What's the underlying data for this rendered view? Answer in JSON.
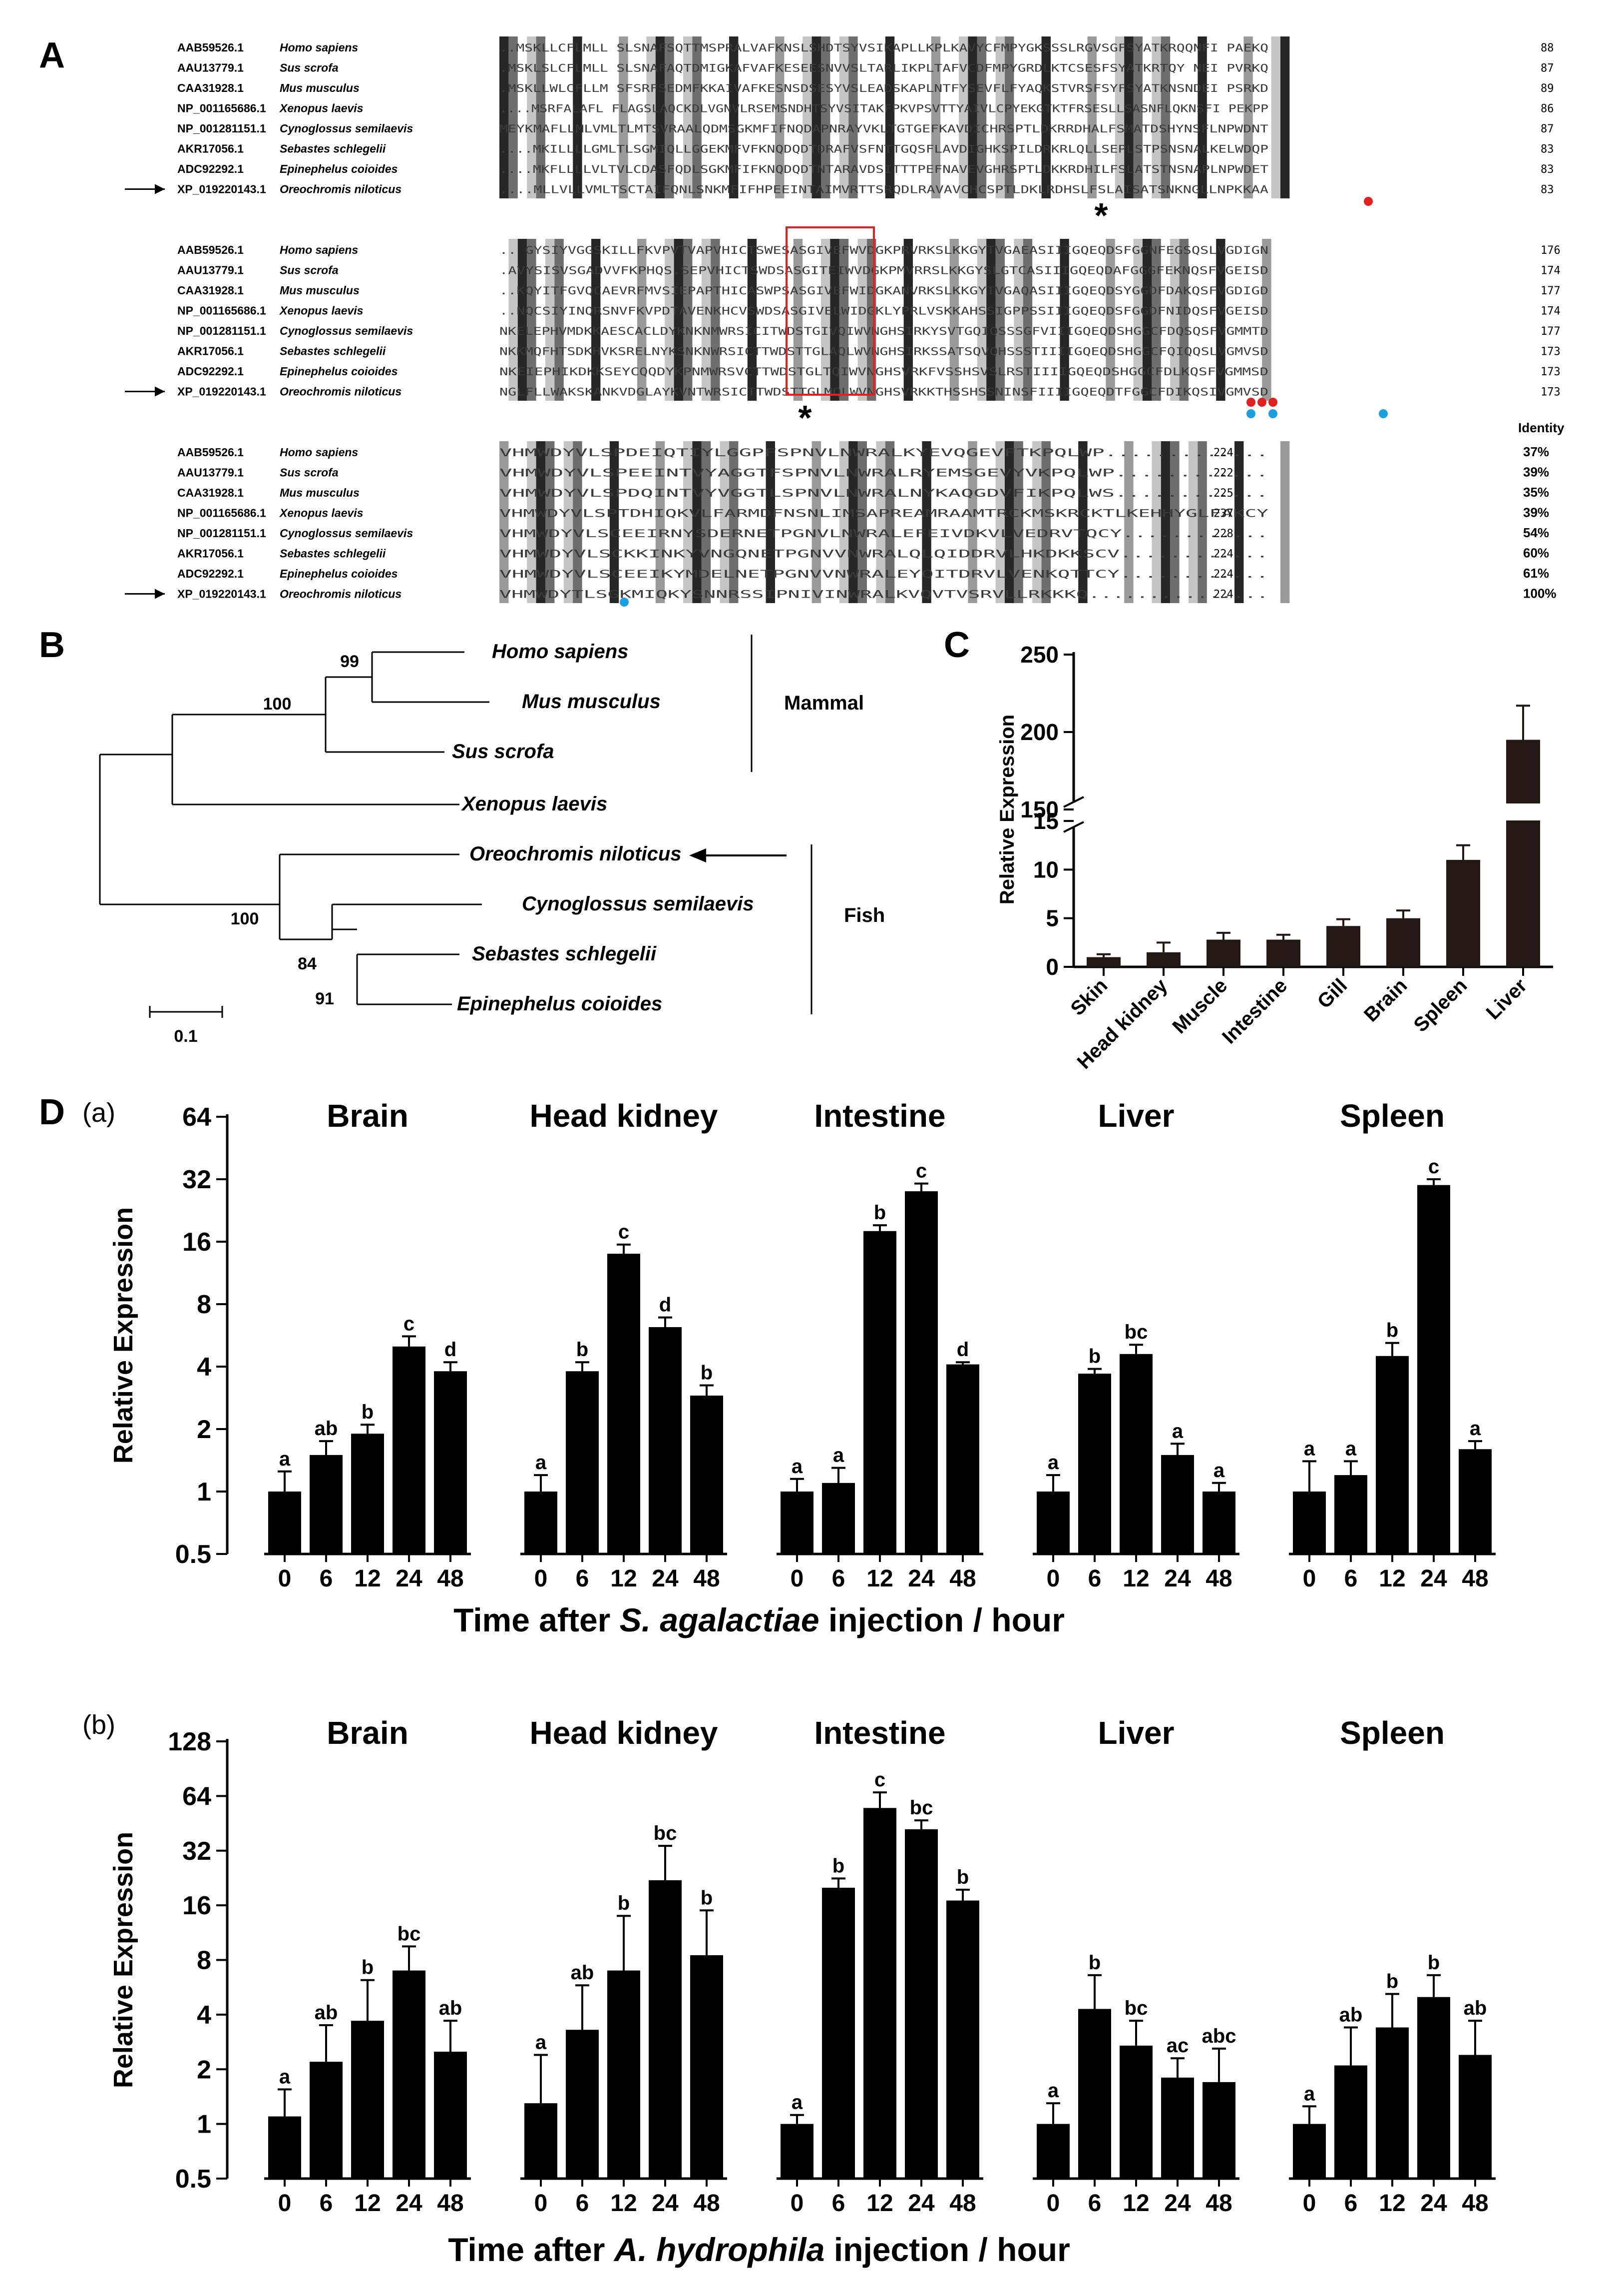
{
  "panels": {
    "A": "A",
    "B": "B",
    "C": "C",
    "D": "D",
    "Da": "(a)",
    "Db": "(b)"
  },
  "alignment": {
    "species": [
      {
        "acc": "AAB59526.1",
        "name": "Homo sapiens",
        "ends": [
          88,
          176,
          224
        ],
        "identity": "37%"
      },
      {
        "acc": "AAU13779.1",
        "name": "Sus scrofa",
        "ends": [
          87,
          174,
          222
        ],
        "identity": "39%"
      },
      {
        "acc": "CAA31928.1",
        "name": "Mus musculus",
        "ends": [
          89,
          177,
          225
        ],
        "identity": "35%"
      },
      {
        "acc": "NP_001165686.1",
        "name": "Xenopus laevis",
        "ends": [
          86,
          174,
          237
        ],
        "identity": "39%"
      },
      {
        "acc": "NP_001281151.1",
        "name": "Cynoglossus semilaevis",
        "ends": [
          87,
          177,
          228
        ],
        "identity": "54%"
      },
      {
        "acc": "AKR17056.1",
        "name": "Sebastes schlegelii",
        "ends": [
          83,
          173,
          224
        ],
        "identity": "60%"
      },
      {
        "acc": "ADC92292.1",
        "name": "Epinephelus coioides",
        "ends": [
          83,
          173,
          224
        ],
        "identity": "61%"
      },
      {
        "acc": "XP_019220143.1",
        "name": "Oreochromis niloticus",
        "ends": [
          83,
          173,
          224
        ],
        "identity": "100%"
      }
    ],
    "sequences": [
      [
        "..MSKLLCFLMLL SLSNAFSQTTMSPRALVAFKNSLSHDTSYVSIKAPLLKPLKAVYCFMPYGKSSSLRGVSGFSYATKRQQNFI PAEKQ",
        ".MSKLSLCFLMLL SLSNAFAQTDMIGKAFVAFKESEESNVVSLTARLIKPLTAFVCDFMPYGRDLKTCSESFSYATKRTQY NEI PVRKQ",
        ".MSKLLWLCFLLM SFSRFSEDMFKKAIVAFKESNSDSESYVSLEADSKAPLNTFYSEVFLFYAQKSTVRSFSYFSYATKNSNDEI PSRKD",
        "....MSRFALAFL FLAGSLAQCKDLVGNVLRSEMSNDHTSYVSITAKFPKVPSVTTYAIVLCPYEKGTKTFRSESLLSASNFLQKNSFI PEKPP",
        "MEYKMAFLLMLVMLTLMTSVRAALQDMSGKMFIFNQDAPNRAYVKLTGTGEFKAVDICHRSPTLDKRRDHALFSMATDSHYNSFLNPWDNT",
        "....MKILLLLGMLTLSGMIQLLGGEKMFVFKNQDQDTDRAFVSFNTTGQSFLAVDIGHKSPILDRKRLQLLSEPLSTPSNSNALKELWDQP",
        "....MKFLLLLVLTVLCDASFQDLSGKMFIFKNQDQDTNTARAVDSITTTPEFNAVEVGHRSPTLDKKRDHILFSLATSTNSNAPLNPWDET",
        "....MLLVLLVMLTSCTAIFQNLSNKMFIFHPEEINTAIMVRTTSRQDLRAVAVCHCSPTLDKLRDHSLFSLAISATSNKNGLLNPKKAA"
      ],
      [
        ".. GYSIYVGGSKILLFKVPVTVAPVHICTSWESASGIVEFWVDGKPRVRKSLKKGYTVGAEASIIIGQEQDSFGGNFEGSQSLVGDIGN",
        ".AVYSISVSGADVVFKPHQS.SEPVHICTSWDSASGITEIWVDGKPMVRRSLKKGYSLGTCASIIIGQEQDAFGGGFEKNQSFVGEISD",
        "..KQYITFGVQCAEVRFMVSIEPAPTHICASWPSASGIVEFWIDGKANVRKSLKKGYTVGAQASIIIGQEQDSYGGDFDAKQSFVGDIGD",
        "..NQCSIYINQRSNVFKVPDTAVENKHCVSWDSASGIVELWIDGKLYPRLVSKKAHSSIGPPSSIIIGQEQDSFGGDFNIDQSFVGEISD",
        "NKELEPHVMDKKAESCACLDYKNKNMWRSICITWDSTGIVQIWVNGHSIRKYSVTGQIQSSSGFVIIIGQEQDSHGGCFDQSQSFVGMMTD",
        "NKKMQFHTSDKHVKSRELNYKSNKNWRSICTTWDSTTGLAQLWVNGHSIRKSSATSQVQHSSSTIIIIGQEQDSHGGCFQIQQSLVGMVSD",
        "NKEIEPHIKDKKSEYCQQDYKPNMWRSVCTTWDSTGLTQIWVNGHSVRKFVSSHSVSLRSTIIIIGQEQDSHGGCFDLKQSFVGMMSD",
        "NGLFLLWAKSKANKVDGLAYKVNTWRSICTTWDSTTGLMQLWVNGHSVRKKTHSSHSSNINSFIIIIGQEQDTFGGCFDIKQSIVGMVSD"
      ],
      [
        "VHMWDYVLSPDEIQTIYLGGPFSPNVLNWRALKYEVQGEVFTKPQLWP.............",
        "VHMWDYVLSPEEINTVYAGGTFSPNVLNWRALRYEMSGEVYVKPQLWP............",
        "VHMWDYVLSPDQINTVYVGGTLSPNVLNWRALNYKAQGDVFIKPQLWS............",
        "VHMWDYVLSPTDHIQKVLFARMDFNSNLIMSAPREAMRAAMTRCKMSKRCKTLKEHHYGLFAKCY",
        "VHMWDYVLSCEEIRNYSDERNETPGNVLNWRALEFEIVDKVLVEDRVTQCY............",
        "VHMWDYVLSCKKINKYVNGQNETPGNVVNWRALQLQIDDRVLHKDKKSCV............",
        "VHMWDYVLSCEEIKYMDELNETPGNVVNWRALEYQITDRVLVENKQTTCY............",
        "VHMWDYTLSGKMIQKYSNNRSSIPNIVINWRALKVQVTVSRVLLRKKKQ..............."
      ]
    ],
    "identity_header": "Identity",
    "star": "*"
  },
  "tree": {
    "taxa": [
      "Homo sapiens",
      "Mus musculus",
      "Sus scrofa",
      "Xenopus laevis",
      "Oreochromis niloticus",
      "Cynoglossus semilaevis",
      "Sebastes schlegelii",
      "Epinephelus coioides"
    ],
    "bootstraps": [
      "99",
      "100",
      "100",
      "84",
      "91"
    ],
    "groups": [
      "Mammal",
      "Fish"
    ],
    "scale_label": "0.1"
  },
  "chart_data": [
    {
      "panel": "C",
      "type": "bar",
      "ylabel": "Relative Expression",
      "categories": [
        "Skin",
        "Head kidney",
        "Muscle",
        "Intestine",
        "Gill",
        "Brain",
        "Spleen",
        "Liver"
      ],
      "values": [
        1.0,
        1.5,
        2.8,
        2.8,
        4.2,
        5.0,
        11.0,
        195
      ],
      "errors": [
        0.3,
        1.0,
        0.7,
        0.5,
        0.7,
        0.8,
        1.5,
        22
      ],
      "ylim": [
        0,
        250
      ],
      "axis_break": [
        15,
        150
      ],
      "lower_ticks": [
        0,
        5,
        10,
        15
      ],
      "upper_ticks": [
        150,
        200,
        250
      ]
    },
    {
      "panel": "D(a)",
      "type": "bar",
      "y_scale": "log2",
      "ylabel": "Relative Expression",
      "xlabel_parts": [
        "Time after ",
        "S. agalactiae",
        " injection / hour"
      ],
      "yticks": [
        "0.5",
        "1",
        "2",
        "4",
        "8",
        "16",
        "32",
        "64"
      ],
      "ylim": [
        0.5,
        64
      ],
      "categories": [
        "0",
        "6",
        "12",
        "24",
        "48"
      ],
      "series": [
        {
          "name": "Brain",
          "values": [
            1,
            1.5,
            1.9,
            5.0,
            3.8
          ],
          "errors": [
            0.25,
            0.25,
            0.2,
            0.6,
            0.4
          ],
          "letters": [
            "a",
            "ab",
            "b",
            "c",
            "d"
          ]
        },
        {
          "name": "Head kidney",
          "values": [
            1,
            3.8,
            14,
            6.2,
            2.9
          ],
          "errors": [
            0.2,
            0.4,
            1.5,
            0.7,
            0.35
          ],
          "letters": [
            "a",
            "b",
            "c",
            "d",
            "b"
          ]
        },
        {
          "name": "Intestine",
          "values": [
            1,
            1.1,
            18,
            28,
            4.1
          ],
          "errors": [
            0.15,
            0.2,
            1.2,
            2.5,
            0.1
          ],
          "letters": [
            "a",
            "a",
            "b",
            "c",
            "d"
          ]
        },
        {
          "name": "Liver",
          "values": [
            1,
            3.7,
            4.6,
            1.5,
            1.0
          ],
          "errors": [
            0.2,
            0.2,
            0.5,
            0.2,
            0.1
          ],
          "letters": [
            "a",
            "b",
            "bc",
            "a",
            "a"
          ]
        },
        {
          "name": "Spleen",
          "values": [
            1,
            1.2,
            4.5,
            30,
            1.6
          ],
          "errors": [
            0.4,
            0.2,
            0.7,
            2.0,
            0.15
          ],
          "letters": [
            "a",
            "a",
            "b",
            "c",
            "a"
          ]
        }
      ]
    },
    {
      "panel": "D(b)",
      "type": "bar",
      "y_scale": "log2",
      "ylabel": "Relative Expression",
      "xlabel_parts": [
        "Time after ",
        "A. hydrophila",
        " injection / hour"
      ],
      "yticks": [
        "0.5",
        "1",
        "2",
        "4",
        "8",
        "16",
        "32",
        "64",
        "128"
      ],
      "ylim": [
        0.5,
        128
      ],
      "categories": [
        "0",
        "6",
        "12",
        "24",
        "48"
      ],
      "series": [
        {
          "name": "Brain",
          "values": [
            1.1,
            2.2,
            3.7,
            7.0,
            2.5
          ],
          "errors": [
            0.45,
            1.3,
            2.5,
            2.5,
            1.2
          ],
          "letters": [
            "a",
            "ab",
            "b",
            "bc",
            "ab"
          ]
        },
        {
          "name": "Head kidney",
          "values": [
            1.3,
            3.3,
            7.0,
            22,
            8.5
          ],
          "errors": [
            1.1,
            2.5,
            7.0,
            12,
            6.5
          ],
          "letters": [
            "a",
            "ab",
            "b",
            "bc",
            "b"
          ]
        },
        {
          "name": "Intestine",
          "values": [
            1.0,
            20,
            55,
            42,
            17
          ],
          "errors": [
            0.12,
            2.5,
            12,
            5,
            2.5
          ],
          "letters": [
            "a",
            "b",
            "c",
            "bc",
            "b"
          ]
        },
        {
          "name": "Liver",
          "values": [
            1.0,
            4.3,
            2.7,
            1.8,
            1.7
          ],
          "errors": [
            0.3,
            2.3,
            1.0,
            0.5,
            0.9
          ],
          "letters": [
            "a",
            "b",
            "bc",
            "ac",
            "abc"
          ]
        },
        {
          "name": "Spleen",
          "values": [
            1.0,
            2.1,
            3.4,
            5.0,
            2.4
          ],
          "errors": [
            0.25,
            1.3,
            1.8,
            1.6,
            1.3
          ],
          "letters": [
            "a",
            "ab",
            "b",
            "b",
            "ab"
          ]
        }
      ]
    }
  ]
}
